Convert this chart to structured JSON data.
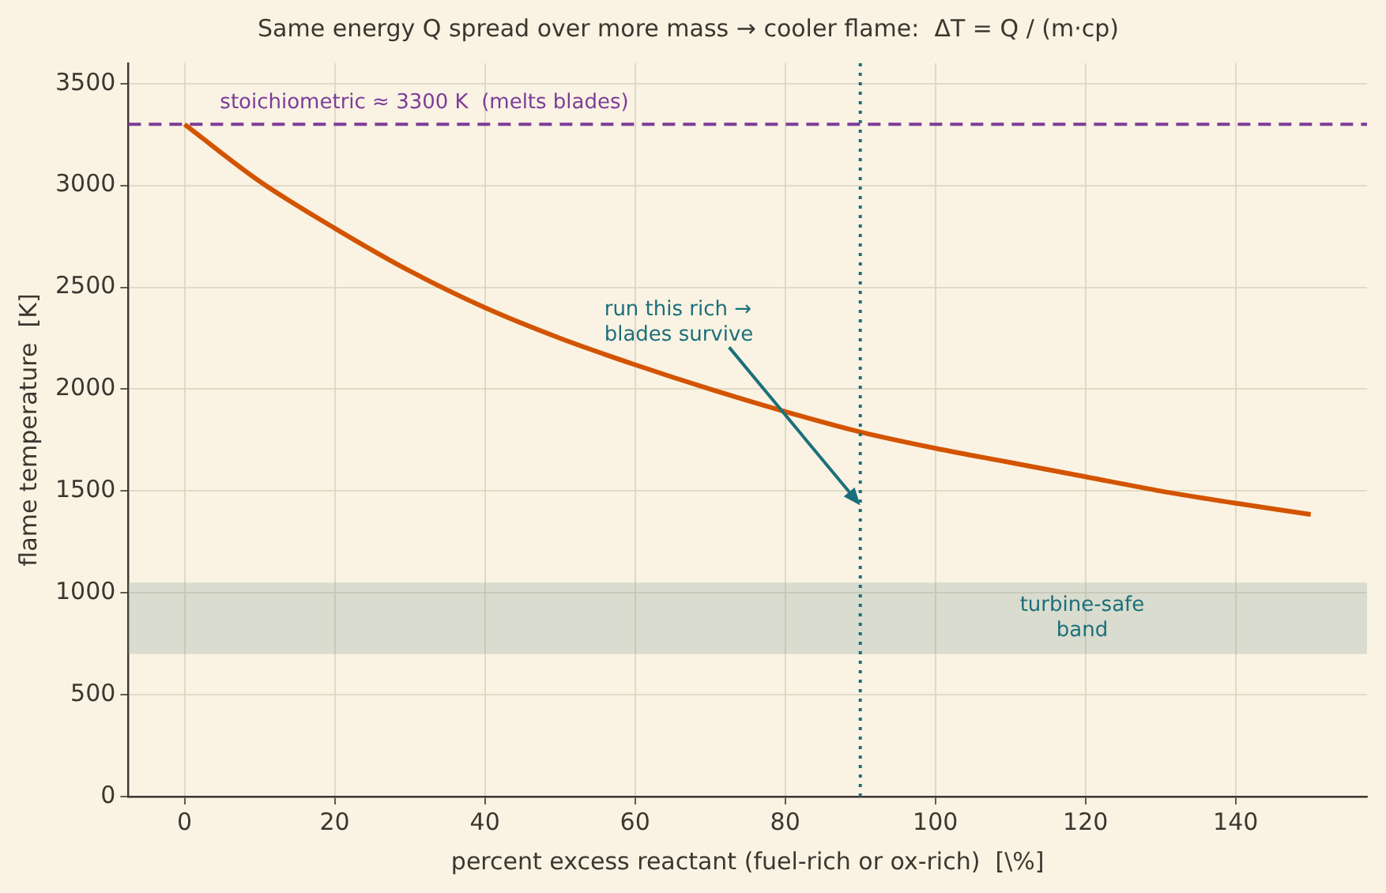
{
  "chart_data": {
    "type": "line",
    "title": "Same energy Q spread over more mass → cooler flame:  ΔT = Q / (m·cp)",
    "xlabel": "percent excess reactant (fuel-rich or ox-rich)  [\\%]",
    "ylabel": "flame temperature  [K]",
    "x": [
      0,
      10,
      20,
      30,
      40,
      50,
      60,
      70,
      80,
      90,
      100,
      110,
      120,
      130,
      140,
      150
    ],
    "series": [
      {
        "color": "#d35400",
        "values": [
          3300,
          3020,
          2790,
          2580,
          2400,
          2250,
          2120,
          2000,
          1890,
          1790,
          1710,
          1640,
          1570,
          1500,
          1440,
          1385
        ]
      }
    ],
    "xlim": [
      -7.5,
      157.5
    ],
    "xticks": [
      0,
      20,
      40,
      60,
      80,
      100,
      120,
      140
    ],
    "ylim": [
      0,
      3600
    ],
    "yticks": [
      0,
      500,
      1000,
      1500,
      2000,
      2500,
      3000,
      3500
    ],
    "ref_lines": [
      {
        "axis": "y",
        "value": 3300,
        "label": "stoichiometric ≈ 3300 K  (melts blades)",
        "color": "#7d3c98",
        "line_style": "dashed"
      },
      {
        "axis": "x",
        "value": 90,
        "label": null,
        "color": "#1b6f7a",
        "line_style": "dotted"
      }
    ],
    "bands": [
      {
        "axis": "y",
        "from": 700,
        "to": 1050,
        "label": "turbine-safe\nband",
        "color": "#8fa8a0"
      }
    ],
    "annotations": [
      {
        "text": "run this rich →\nblades survive",
        "x": 90,
        "y": 1430
      }
    ],
    "grid": true,
    "legend": false,
    "marker": "none",
    "line_style": "solid"
  }
}
